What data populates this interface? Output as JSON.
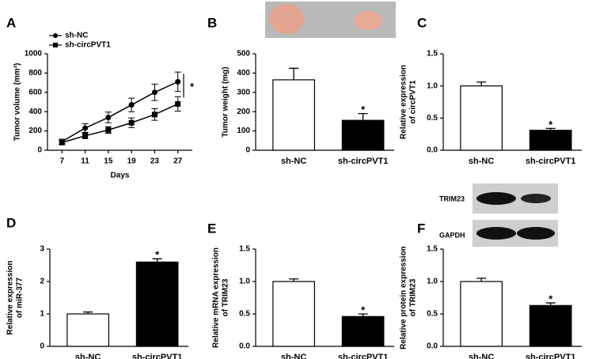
{
  "chart_data": [
    {
      "panel": "A",
      "type": "line",
      "ylabel": [
        "Tumor volume (mm³)"
      ],
      "xlabel": "Days",
      "x": [
        7,
        11,
        15,
        19,
        23,
        27
      ],
      "xlim": [
        4.5,
        29.5
      ],
      "xticks": [
        7,
        11,
        15,
        19,
        23,
        27
      ],
      "ylim": [
        0,
        1000
      ],
      "yticks": [
        0,
        200,
        400,
        600,
        800,
        1000
      ],
      "series": [
        {
          "name": "sh-NC",
          "color": "#000000",
          "marker": "circle",
          "values": [
            90,
            230,
            340,
            470,
            600,
            710
          ],
          "errors": [
            25,
            45,
            55,
            70,
            85,
            100
          ]
        },
        {
          "name": "sh-circPVT1",
          "color": "#000000",
          "marker": "square",
          "values": [
            80,
            150,
            210,
            285,
            370,
            480
          ],
          "errors": [
            20,
            30,
            35,
            50,
            60,
            75
          ]
        }
      ],
      "annotation": "*"
    },
    {
      "panel": "B",
      "type": "bar",
      "ylabel": [
        "Tumor weight (mg)"
      ],
      "categories": [
        "sh-NC",
        "sh-circPVT1"
      ],
      "values": [
        365,
        155
      ],
      "errors": [
        60,
        35
      ],
      "colors": [
        "#ffffff",
        "#000000"
      ],
      "ylim": [
        0,
        500
      ],
      "yticks": [
        0,
        100,
        200,
        300,
        400,
        500
      ],
      "annotation": "*"
    },
    {
      "panel": "C",
      "type": "bar",
      "ylabel": [
        "Relative expression",
        "of circPVT1"
      ],
      "categories": [
        "sh-NC",
        "sh-circPVT1"
      ],
      "values": [
        1.0,
        0.31
      ],
      "errors": [
        0.06,
        0.03
      ],
      "colors": [
        "#ffffff",
        "#000000"
      ],
      "ylim": [
        0,
        1.5
      ],
      "yticks": [
        {
          "value": 0,
          "label": "0.0"
        },
        0.5,
        {
          "value": 1,
          "label": "1.0"
        },
        1.5
      ],
      "annotation": "*"
    },
    {
      "panel": "D",
      "type": "bar",
      "ylabel": [
        "Relative expression",
        "of miR-377"
      ],
      "categories": [
        "sh-NC",
        "sh-circPVT1"
      ],
      "values": [
        1.0,
        2.6
      ],
      "errors": [
        0.06,
        0.1
      ],
      "colors": [
        "#ffffff",
        "#000000"
      ],
      "ylim": [
        0,
        3
      ],
      "yticks": [
        0,
        1,
        2,
        3
      ],
      "annotation": "*"
    },
    {
      "panel": "E",
      "type": "bar",
      "ylabel": [
        "Relative mRNA expression",
        "of TRIM23"
      ],
      "categories": [
        "sh-NC",
        "sh-circPVT1"
      ],
      "values": [
        1.0,
        0.46
      ],
      "errors": [
        0.04,
        0.04
      ],
      "colors": [
        "#ffffff",
        "#000000"
      ],
      "ylim": [
        0,
        1.5
      ],
      "yticks": [
        {
          "value": 0,
          "label": "0.0"
        },
        0.5,
        {
          "value": 1,
          "label": "1.0"
        },
        1.5
      ],
      "annotation": "*"
    },
    {
      "panel": "F",
      "type": "bar",
      "ylabel": [
        "Relative protein expression",
        "of TRIM23"
      ],
      "categories": [
        "sh-NC",
        "sh-circPVT1"
      ],
      "values": [
        1.0,
        0.63
      ],
      "errors": [
        0.05,
        0.04
      ],
      "colors": [
        "#ffffff",
        "#000000"
      ],
      "ylim": [
        0,
        1.5
      ],
      "yticks": [
        {
          "value": 0,
          "label": "0.0"
        },
        0.5,
        {
          "value": 1,
          "label": "1.0"
        },
        1.5
      ],
      "annotation": "*",
      "blot_labels": [
        "TRIM23",
        "GAPDH"
      ]
    }
  ]
}
